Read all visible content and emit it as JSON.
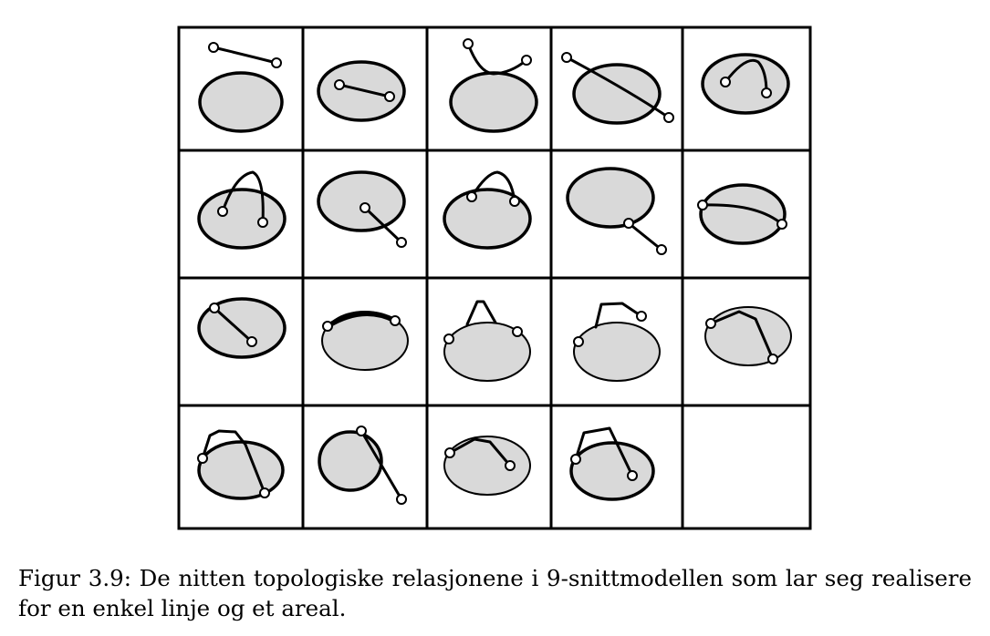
{
  "figure": {
    "caption": "Figur 3.9: De nitten topologiske relasjonene i 9-snittmodellen som lar seg realisere for en enkel linje og et areal.",
    "cell_count": 19,
    "colors": {
      "area_fill": "#d9d9d9",
      "stroke": "#000000",
      "endpoint_fill": "#ffffff"
    }
  }
}
